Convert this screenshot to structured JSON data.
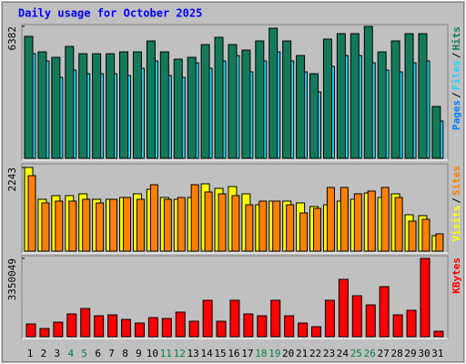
{
  "title": "Daily usage for October 2025",
  "legend_separator": "/",
  "weekend_color": "#008040",
  "weekend_indices": [
    3,
    4,
    10,
    11,
    17,
    18,
    24,
    25
  ],
  "chart_data": [
    {
      "type": "bar",
      "ylim": [
        0,
        6382
      ],
      "yticks": [
        6382
      ],
      "series": [
        {
          "name": "Pages",
          "color": "#0080ff",
          "values": null
        },
        {
          "name": "Files",
          "color": "#19d7f5",
          "values": [
            5061,
            4710,
            3917,
            4269,
            4093,
            4093,
            4093,
            4005,
            4357,
            4710,
            4005,
            3917,
            4621,
            4357,
            4710,
            4973,
            4181,
            4710,
            5149,
            4710,
            4181,
            3213,
            4445,
            4973,
            4973,
            4621,
            4269,
            4181,
            4621,
            4710,
            1805
          ]
        },
        {
          "name": "Hits",
          "color": "#127a5a",
          "values": [
            5898,
            5149,
            4885,
            5414,
            5061,
            5061,
            5061,
            5149,
            5149,
            5678,
            5149,
            4797,
            4885,
            5502,
            5854,
            5502,
            5237,
            5678,
            6294,
            5678,
            4973,
            4093,
            5766,
            6030,
            6030,
            6382,
            5149,
            5678,
            6030,
            6030,
            2509
          ]
        }
      ]
    },
    {
      "type": "bar",
      "ylim": [
        0,
        2243
      ],
      "yticks": [
        2243
      ],
      "series": [
        {
          "name": "Visits",
          "color": "#ffff00",
          "values": [
            2243,
            1390,
            1487,
            1487,
            1536,
            1390,
            1390,
            1438,
            1536,
            1658,
            1438,
            1390,
            1438,
            1804,
            1682,
            1731,
            1536,
            1243,
            1341,
            1341,
            1292,
            1195,
            1243,
            1341,
            1390,
            1560,
            1438,
            1536,
            975,
            951,
            414
          ]
        },
        {
          "name": "Sites",
          "color": "#ff8000",
          "values": [
            2024,
            1292,
            1341,
            1341,
            1390,
            1292,
            1390,
            1438,
            1390,
            1780,
            1390,
            1438,
            1780,
            1585,
            1536,
            1487,
            1243,
            1341,
            1341,
            1243,
            1024,
            1146,
            1707,
            1707,
            1536,
            1609,
            1707,
            1438,
            805,
            853,
            463
          ]
        }
      ]
    },
    {
      "type": "bar",
      "ylim": [
        0,
        3350049
      ],
      "yticks": [
        3350049
      ],
      "categories": [
        "1",
        "2",
        "3",
        "4",
        "5",
        "6",
        "7",
        "8",
        "9",
        "10",
        "11",
        "12",
        "13",
        "14",
        "15",
        "16",
        "17",
        "18",
        "19",
        "20",
        "21",
        "22",
        "23",
        "24",
        "25",
        "26",
        "27",
        "28",
        "29",
        "30",
        "31"
      ],
      "series": [
        {
          "name": "KBytes",
          "color": "#ff0000",
          "values": [
            545356,
            350586,
            623264,
            973850,
            1207574,
            895942,
            934896,
            740126,
            584310,
            818034,
            779080,
            1051758,
            662218,
            1558160,
            662218,
            1558160,
            973850,
            895942,
            1558160,
            895942,
            584310,
            428494,
            1558160,
            2454102,
            1752930,
            1363390,
            2142470,
            934896,
            1129666,
            3350049,
            233724
          ]
        }
      ]
    }
  ]
}
